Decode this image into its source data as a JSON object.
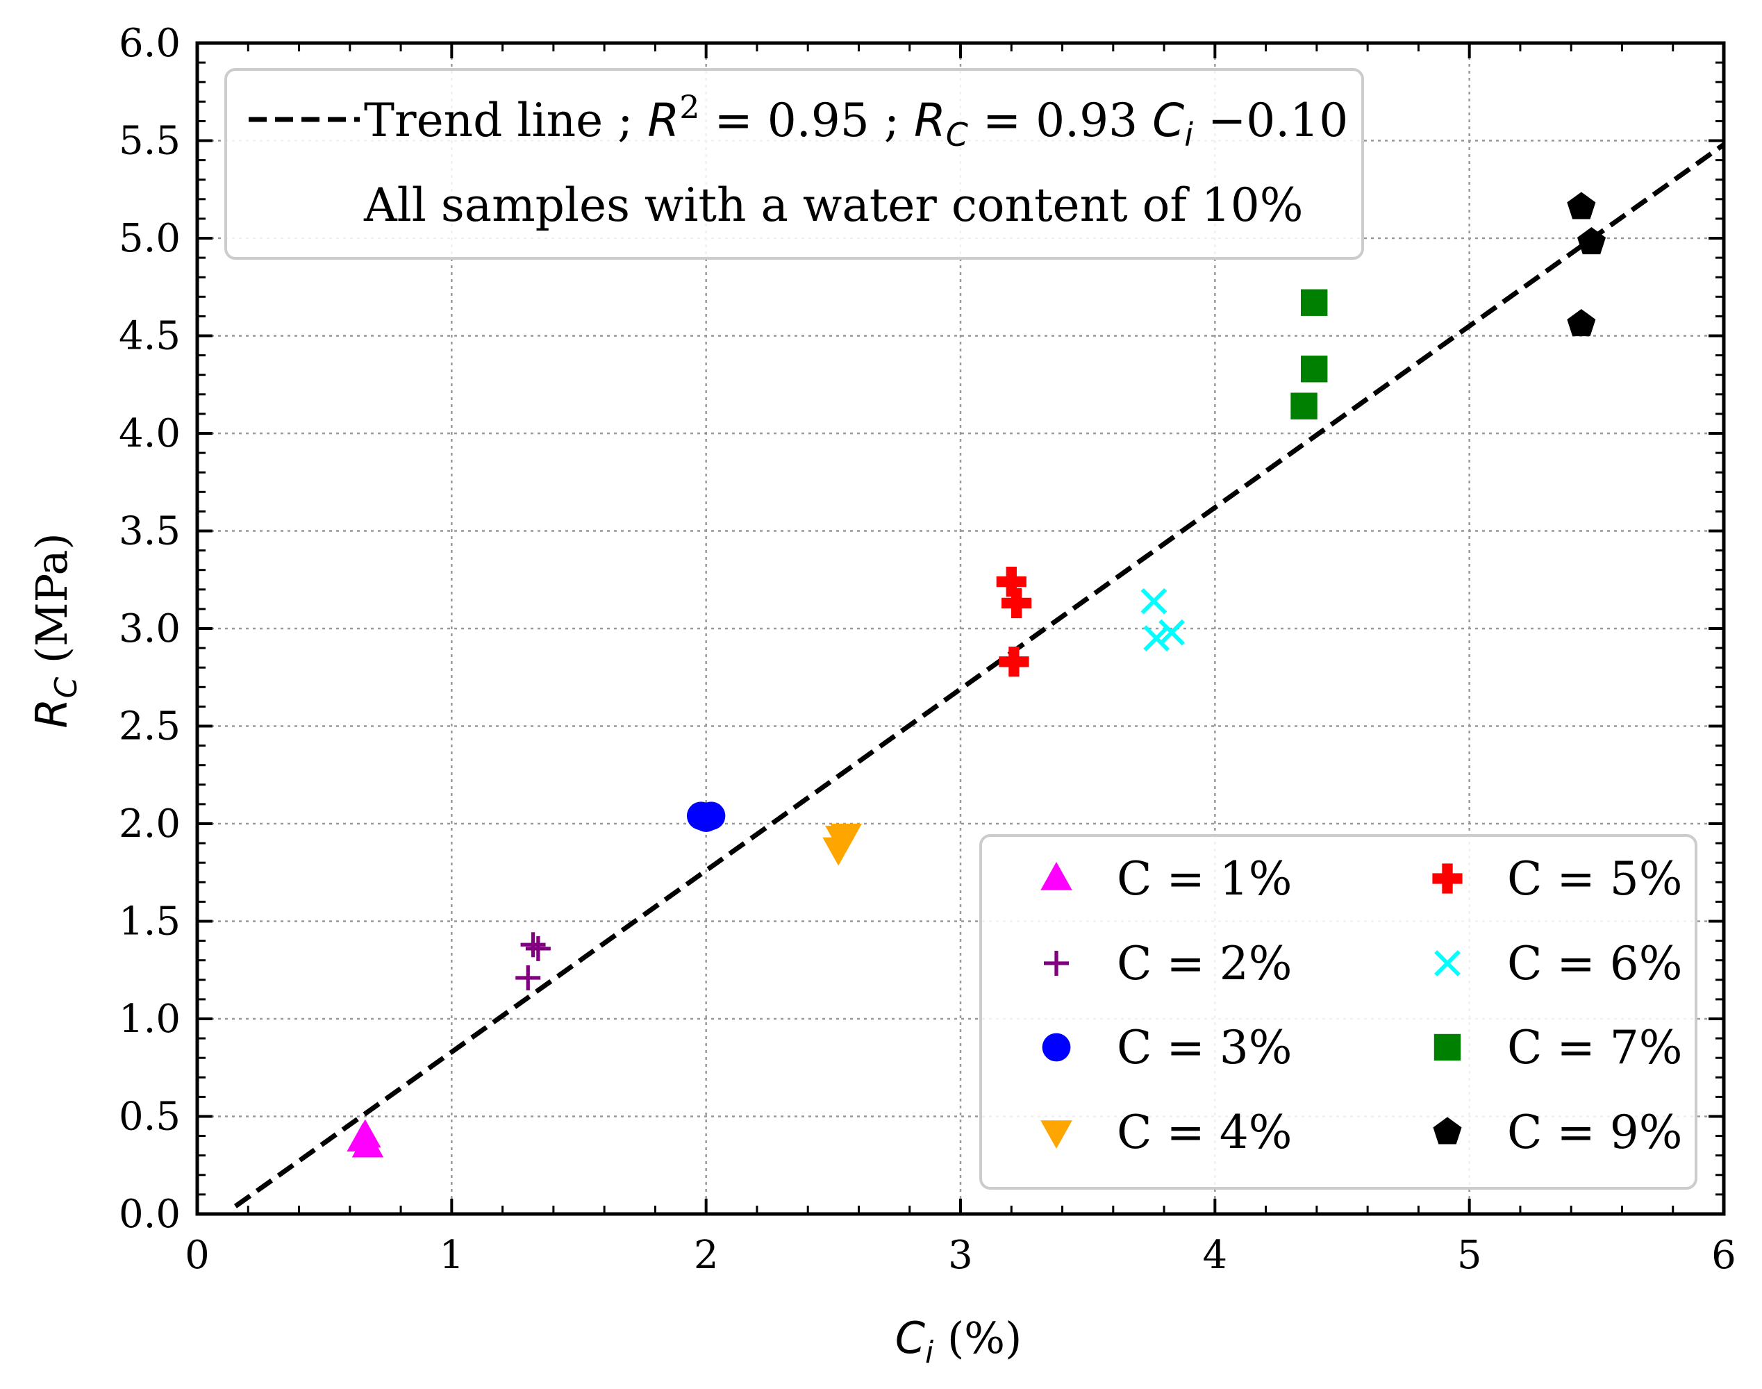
{
  "chart_data": {
    "type": "scatter",
    "xlabel": {
      "main": "C",
      "sub": "i",
      "rest": " (%)"
    },
    "ylabel": {
      "main": "R",
      "sub": "C",
      "rest": " (MPa)"
    },
    "xlim": [
      0,
      6
    ],
    "ylim": [
      0.0,
      6.0
    ],
    "x_ticks": [
      0,
      1,
      2,
      3,
      4,
      5,
      6
    ],
    "x_tick_labels": [
      "0",
      "1",
      "2",
      "3",
      "4",
      "5",
      "6"
    ],
    "y_ticks": [
      0.0,
      0.5,
      1.0,
      1.5,
      2.0,
      2.5,
      3.0,
      3.5,
      4.0,
      4.5,
      5.0,
      5.5,
      6.0
    ],
    "y_tick_labels": [
      "0.0",
      "0.5",
      "1.0",
      "1.5",
      "2.0",
      "2.5",
      "3.0",
      "3.5",
      "4.0",
      "4.5",
      "5.0",
      "5.5",
      "6.0"
    ],
    "grid": true,
    "trend": {
      "slope": 0.93,
      "intercept": -0.1,
      "x_range": [
        0.15,
        6.0
      ],
      "style": "dashed",
      "color": "#000000",
      "legend_label": "Trend line",
      "r2_text": "; R² = 0.95 ;",
      "r2_prefix": ";",
      "r2_sym": "R",
      "r2_sup": "2",
      "r2_value": " = 0.95 ;",
      "eq_sym": "R",
      "eq_sub": "C",
      "eq_mid": " = 0.93 ",
      "eq_var": "C",
      "eq_var_sub": "i",
      "eq_end": " −0.10"
    },
    "note": "All samples with a water content of 10%",
    "series": [
      {
        "name": "C = 1%",
        "marker": "triangle-up",
        "color": "#ff00ff",
        "points": [
          [
            0.65,
            0.38
          ],
          [
            0.67,
            0.35
          ],
          [
            0.66,
            0.4
          ]
        ]
      },
      {
        "name": "C = 2%",
        "marker": "plus",
        "color": "#800080",
        "points": [
          [
            1.32,
            1.38
          ],
          [
            1.34,
            1.36
          ],
          [
            1.3,
            1.21
          ]
        ]
      },
      {
        "name": "C = 3%",
        "marker": "circle",
        "color": "#0000ff",
        "points": [
          [
            1.98,
            2.04
          ],
          [
            2.02,
            2.04
          ],
          [
            2.0,
            2.03
          ]
        ]
      },
      {
        "name": "C = 4%",
        "marker": "triangle-down",
        "color": "#ffa500",
        "points": [
          [
            2.52,
            1.87
          ],
          [
            2.55,
            1.94
          ],
          [
            2.53,
            1.93
          ]
        ]
      },
      {
        "name": "C = 5%",
        "marker": "cross-filled",
        "color": "#ff0000",
        "points": [
          [
            3.2,
            3.24
          ],
          [
            3.22,
            3.13
          ],
          [
            3.21,
            2.83
          ]
        ]
      },
      {
        "name": "C = 6%",
        "marker": "x",
        "color": "#00ffff",
        "points": [
          [
            3.76,
            3.14
          ],
          [
            3.77,
            2.95
          ],
          [
            3.83,
            2.98
          ]
        ]
      },
      {
        "name": "C = 7%",
        "marker": "square",
        "color": "#008000",
        "points": [
          [
            4.39,
            4.67
          ],
          [
            4.39,
            4.33
          ],
          [
            4.35,
            4.14
          ]
        ]
      },
      {
        "name": "C = 9%",
        "marker": "pentagon",
        "color": "#000000",
        "points": [
          [
            5.44,
            5.16
          ],
          [
            5.48,
            4.98
          ],
          [
            5.44,
            4.56
          ]
        ]
      }
    ],
    "legend_position": "lower-right"
  }
}
